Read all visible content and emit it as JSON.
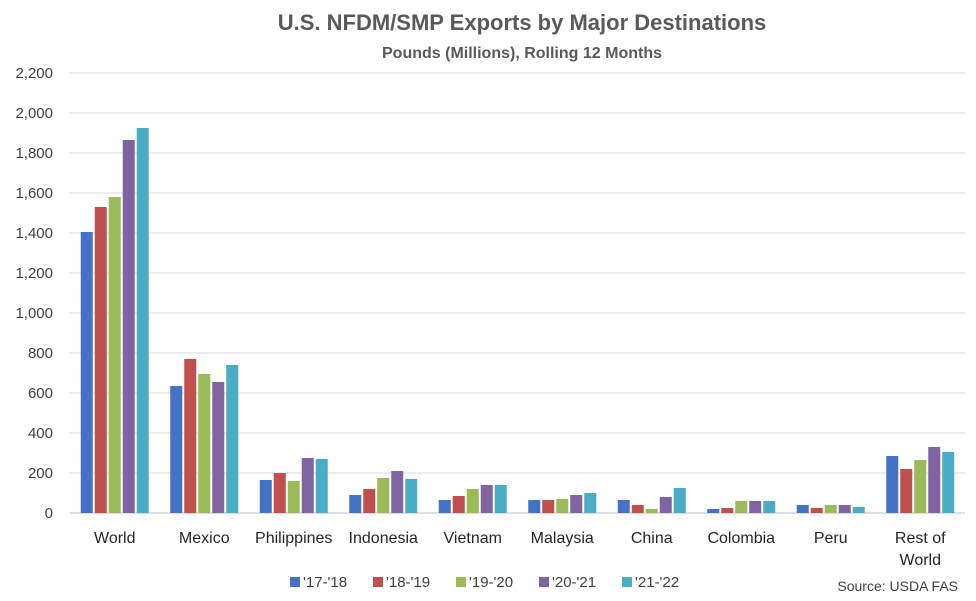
{
  "chart_data": {
    "type": "bar",
    "title": "U.S. NFDM/SMP Exports by Major Destinations",
    "subtitle": "Pounds (Millions), Rolling 12 Months",
    "xlabel": "",
    "ylabel": "",
    "ylim": [
      0,
      2200
    ],
    "yticks": [
      0,
      200,
      400,
      600,
      800,
      1000,
      1200,
      1400,
      1600,
      1800,
      2000,
      2200
    ],
    "ytick_labels": [
      "0",
      "200",
      "400",
      "600",
      "800",
      "1,000",
      "1,200",
      "1,400",
      "1,600",
      "1,800",
      "2,000",
      "2,200"
    ],
    "grid": true,
    "legend_position": "bottom",
    "categories": [
      [
        "World"
      ],
      [
        "Mexico"
      ],
      [
        "Philippines"
      ],
      [
        "Indonesia"
      ],
      [
        "Vietnam"
      ],
      [
        "Malaysia"
      ],
      [
        "China"
      ],
      [
        "Colombia"
      ],
      [
        "Peru"
      ],
      [
        "Rest of",
        "World"
      ]
    ],
    "series": [
      {
        "name": "'17-'18",
        "color": "#4472C4",
        "values": [
          1405,
          635,
          165,
          90,
          65,
          65,
          65,
          20,
          40,
          285
        ]
      },
      {
        "name": "'18-'19",
        "color": "#C0504D",
        "values": [
          1530,
          770,
          200,
          120,
          85,
          65,
          40,
          25,
          25,
          220
        ]
      },
      {
        "name": "'19-'20",
        "color": "#9BBB59",
        "values": [
          1580,
          695,
          160,
          175,
          120,
          70,
          20,
          60,
          40,
          265
        ]
      },
      {
        "name": "'20-'21",
        "color": "#8064A2",
        "values": [
          1865,
          655,
          275,
          210,
          140,
          90,
          80,
          60,
          40,
          330
        ]
      },
      {
        "name": "'21-'22",
        "color": "#4BACC6",
        "values": [
          1925,
          740,
          270,
          170,
          140,
          100,
          125,
          60,
          30,
          305
        ]
      }
    ],
    "source": "Source: USDA FAS"
  }
}
